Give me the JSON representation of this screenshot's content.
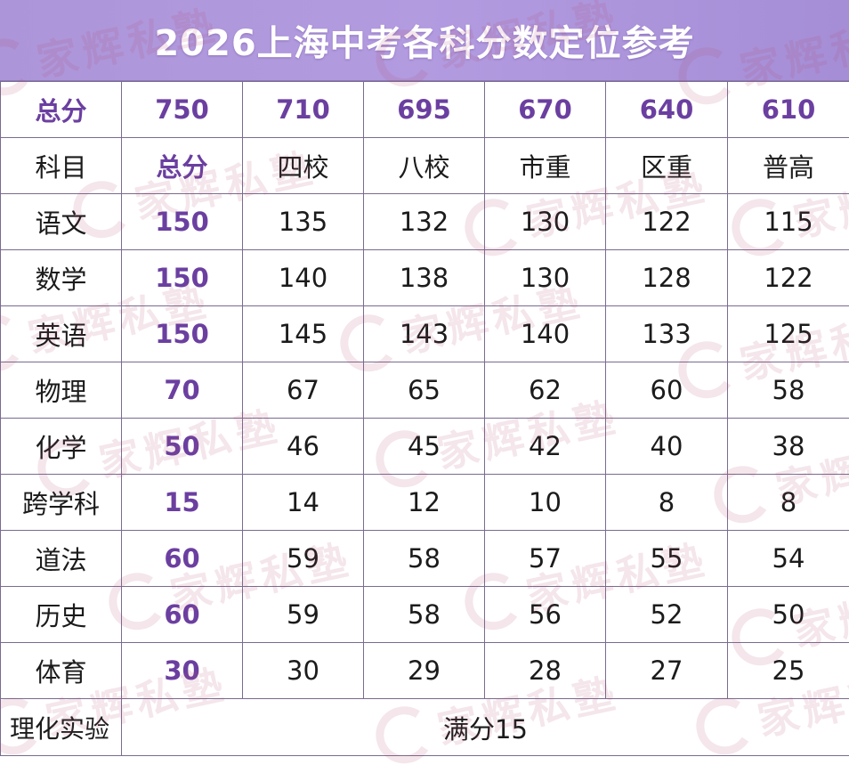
{
  "title": "2026上海中考各科分数定位参考",
  "watermark_text": "家辉私塾",
  "accent_color": "#6b3fa0",
  "header_bar_color": "#b39be0",
  "total_row": {
    "label": "总分",
    "values": [
      "750",
      "710",
      "695",
      "670",
      "640",
      "610"
    ]
  },
  "columns_row": {
    "subject_header": "科目",
    "full_header": "总分",
    "levels": [
      "四校",
      "八校",
      "市重",
      "区重",
      "普高"
    ]
  },
  "rows": [
    {
      "subject": "语文",
      "full": "150",
      "scores": [
        "135",
        "132",
        "130",
        "122",
        "115"
      ]
    },
    {
      "subject": "数学",
      "full": "150",
      "scores": [
        "140",
        "138",
        "130",
        "128",
        "122"
      ]
    },
    {
      "subject": "英语",
      "full": "150",
      "scores": [
        "145",
        "143",
        "140",
        "133",
        "125"
      ]
    },
    {
      "subject": "物理",
      "full": "70",
      "scores": [
        "67",
        "65",
        "62",
        "60",
        "58"
      ]
    },
    {
      "subject": "化学",
      "full": "50",
      "scores": [
        "46",
        "45",
        "42",
        "40",
        "38"
      ]
    },
    {
      "subject": "跨学科",
      "full": "15",
      "scores": [
        "14",
        "12",
        "10",
        "8",
        "8"
      ]
    },
    {
      "subject": "道法",
      "full": "60",
      "scores": [
        "59",
        "58",
        "57",
        "55",
        "54"
      ]
    },
    {
      "subject": "历史",
      "full": "60",
      "scores": [
        "59",
        "58",
        "56",
        "52",
        "50"
      ]
    },
    {
      "subject": "体育",
      "full": "30",
      "scores": [
        "30",
        "29",
        "28",
        "27",
        "25"
      ]
    }
  ],
  "lab_row": {
    "label": "理化实验",
    "value": "满分15"
  }
}
